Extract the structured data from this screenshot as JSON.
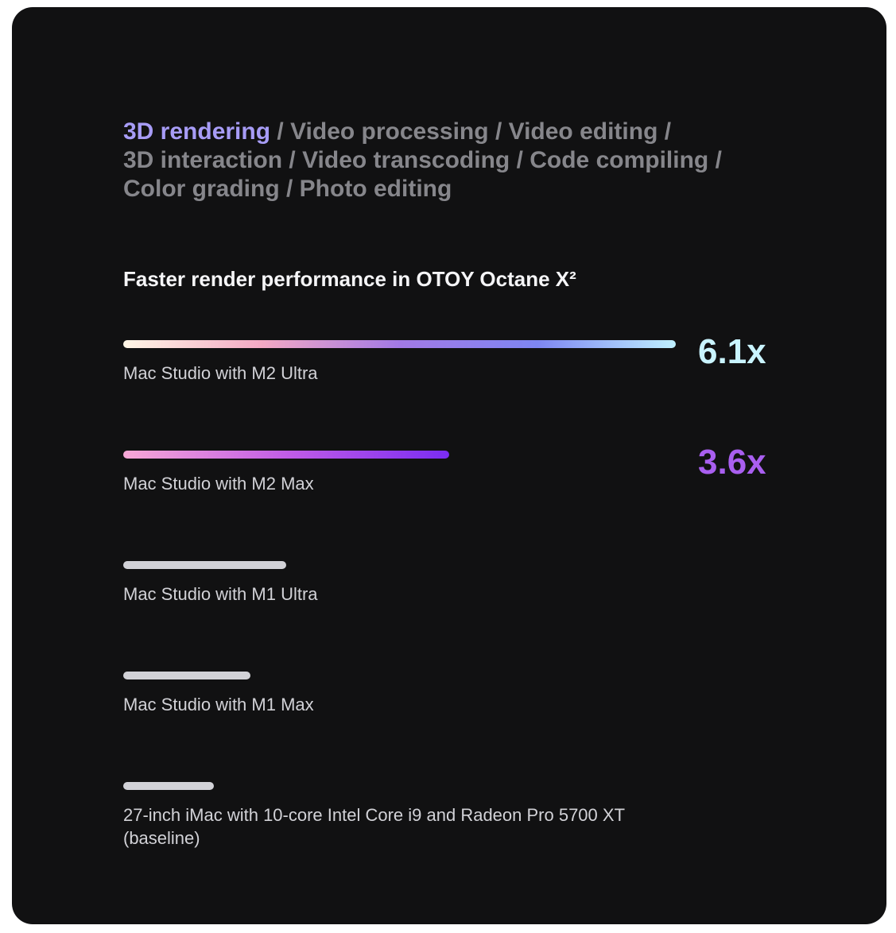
{
  "tabs": [
    {
      "label": "3D rendering",
      "active": true
    },
    {
      "label": "Video processing",
      "active": false
    },
    {
      "label": "Video editing",
      "active": false
    },
    {
      "label": "3D interaction",
      "active": false
    },
    {
      "label": "Video transcoding",
      "active": false
    },
    {
      "label": "Code compiling",
      "active": false
    },
    {
      "label": "Color grading",
      "active": false
    },
    {
      "label": "Photo editing",
      "active": false
    }
  ],
  "colors": {
    "background": "#111112",
    "active_tab": "#a79cf6",
    "inactive_tab": "#86868b",
    "baseline_bar": "#d2d2d7",
    "m2_ultra_gradient": [
      "#fff6e6",
      "#f3a9c4",
      "#a279e6",
      "#7e86f2",
      "#bff0ff"
    ],
    "m2_max_gradient": [
      "#f7a8d6",
      "#c15de6",
      "#7a2cf2"
    ],
    "m2_ultra_value": "#c9f4ff",
    "m2_max_value": "#a95ff0"
  },
  "chart_data": {
    "type": "bar",
    "orientation": "horizontal",
    "title": "Faster render performance in OTOY Octane X²",
    "categories": [
      "Mac Studio with M2 Ultra",
      "Mac Studio with M2 Max",
      "Mac Studio with M1 Ultra",
      "Mac Studio with M1 Max",
      "27-inch iMac with 10-core Intel Core i9 and Radeon Pro 5700 XT (baseline)"
    ],
    "values": [
      6.1,
      3.6,
      1.8,
      1.4,
      1.0
    ],
    "value_labels": [
      "6.1x",
      "3.6x",
      "",
      "",
      ""
    ],
    "xlim": [
      0,
      6.1
    ]
  }
}
